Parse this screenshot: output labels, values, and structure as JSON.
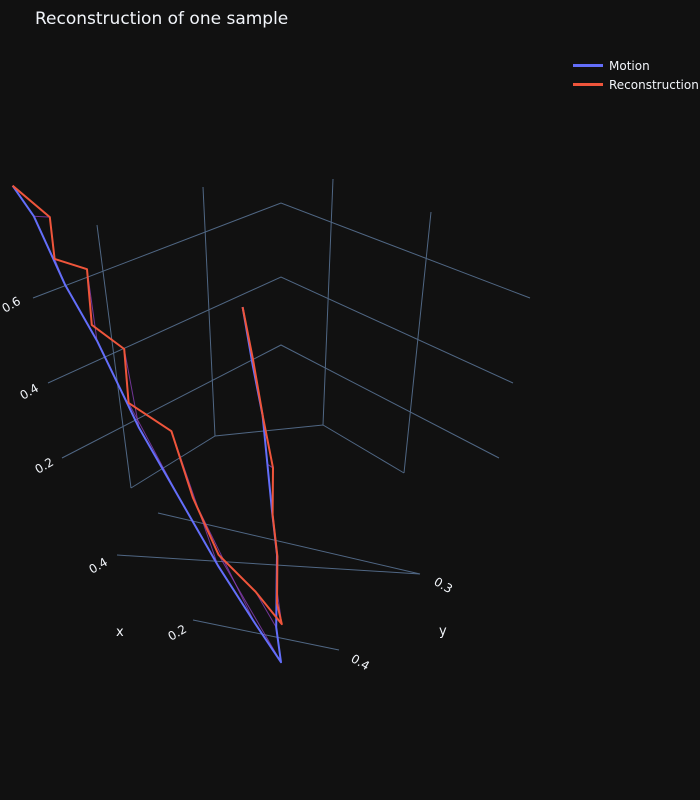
{
  "chart_data": {
    "type": "line-3d",
    "title": "Reconstruction of one sample",
    "legend": {
      "placement": "top-right"
    },
    "axes": {
      "x": {
        "label": "x",
        "ticks": [
          "0.2",
          "0.4"
        ]
      },
      "y": {
        "label": "y",
        "ticks": [
          "0.3",
          "0.4"
        ]
      },
      "z": {
        "label": "",
        "ticks": [
          "0.2",
          "0.4",
          "0.6"
        ]
      }
    },
    "grid": true,
    "series": [
      {
        "name": "Motion",
        "color": "#636efa",
        "points": [
          [
            0.55,
            0.27,
            0.62
          ],
          [
            0.52,
            0.28,
            0.58
          ],
          [
            0.47,
            0.29,
            0.49
          ],
          [
            0.42,
            0.3,
            0.42
          ],
          [
            0.35,
            0.31,
            0.31
          ],
          [
            0.28,
            0.32,
            0.22
          ],
          [
            0.22,
            0.33,
            0.14
          ],
          [
            0.16,
            0.34,
            0.07
          ],
          [
            0.12,
            0.35,
            0.02
          ],
          [
            0.14,
            0.36,
            0.06
          ],
          [
            0.15,
            0.37,
            0.11
          ],
          [
            0.16,
            0.38,
            0.15
          ],
          [
            0.18,
            0.39,
            0.2
          ],
          [
            0.2,
            0.4,
            0.26
          ],
          [
            0.22,
            0.41,
            0.32
          ],
          [
            0.25,
            0.42,
            0.38
          ],
          [
            0.28,
            0.43,
            0.45
          ]
        ]
      },
      {
        "name": "Reconstruction",
        "color": "#ef553b",
        "points": [
          [
            0.55,
            0.27,
            0.62
          ],
          [
            0.5,
            0.29,
            0.58
          ],
          [
            0.48,
            0.28,
            0.53
          ],
          [
            0.45,
            0.31,
            0.51
          ],
          [
            0.43,
            0.3,
            0.44
          ],
          [
            0.4,
            0.33,
            0.4
          ],
          [
            0.37,
            0.31,
            0.34
          ],
          [
            0.32,
            0.34,
            0.3
          ],
          [
            0.3,
            0.36,
            0.2
          ],
          [
            0.24,
            0.35,
            0.14
          ],
          [
            0.18,
            0.36,
            0.1
          ],
          [
            0.14,
            0.37,
            0.06
          ],
          [
            0.16,
            0.38,
            0.08
          ],
          [
            0.17,
            0.39,
            0.14
          ],
          [
            0.19,
            0.4,
            0.19
          ],
          [
            0.2,
            0.41,
            0.25
          ],
          [
            0.23,
            0.42,
            0.31
          ],
          [
            0.26,
            0.43,
            0.38
          ],
          [
            0.28,
            0.43,
            0.45
          ]
        ]
      }
    ]
  }
}
